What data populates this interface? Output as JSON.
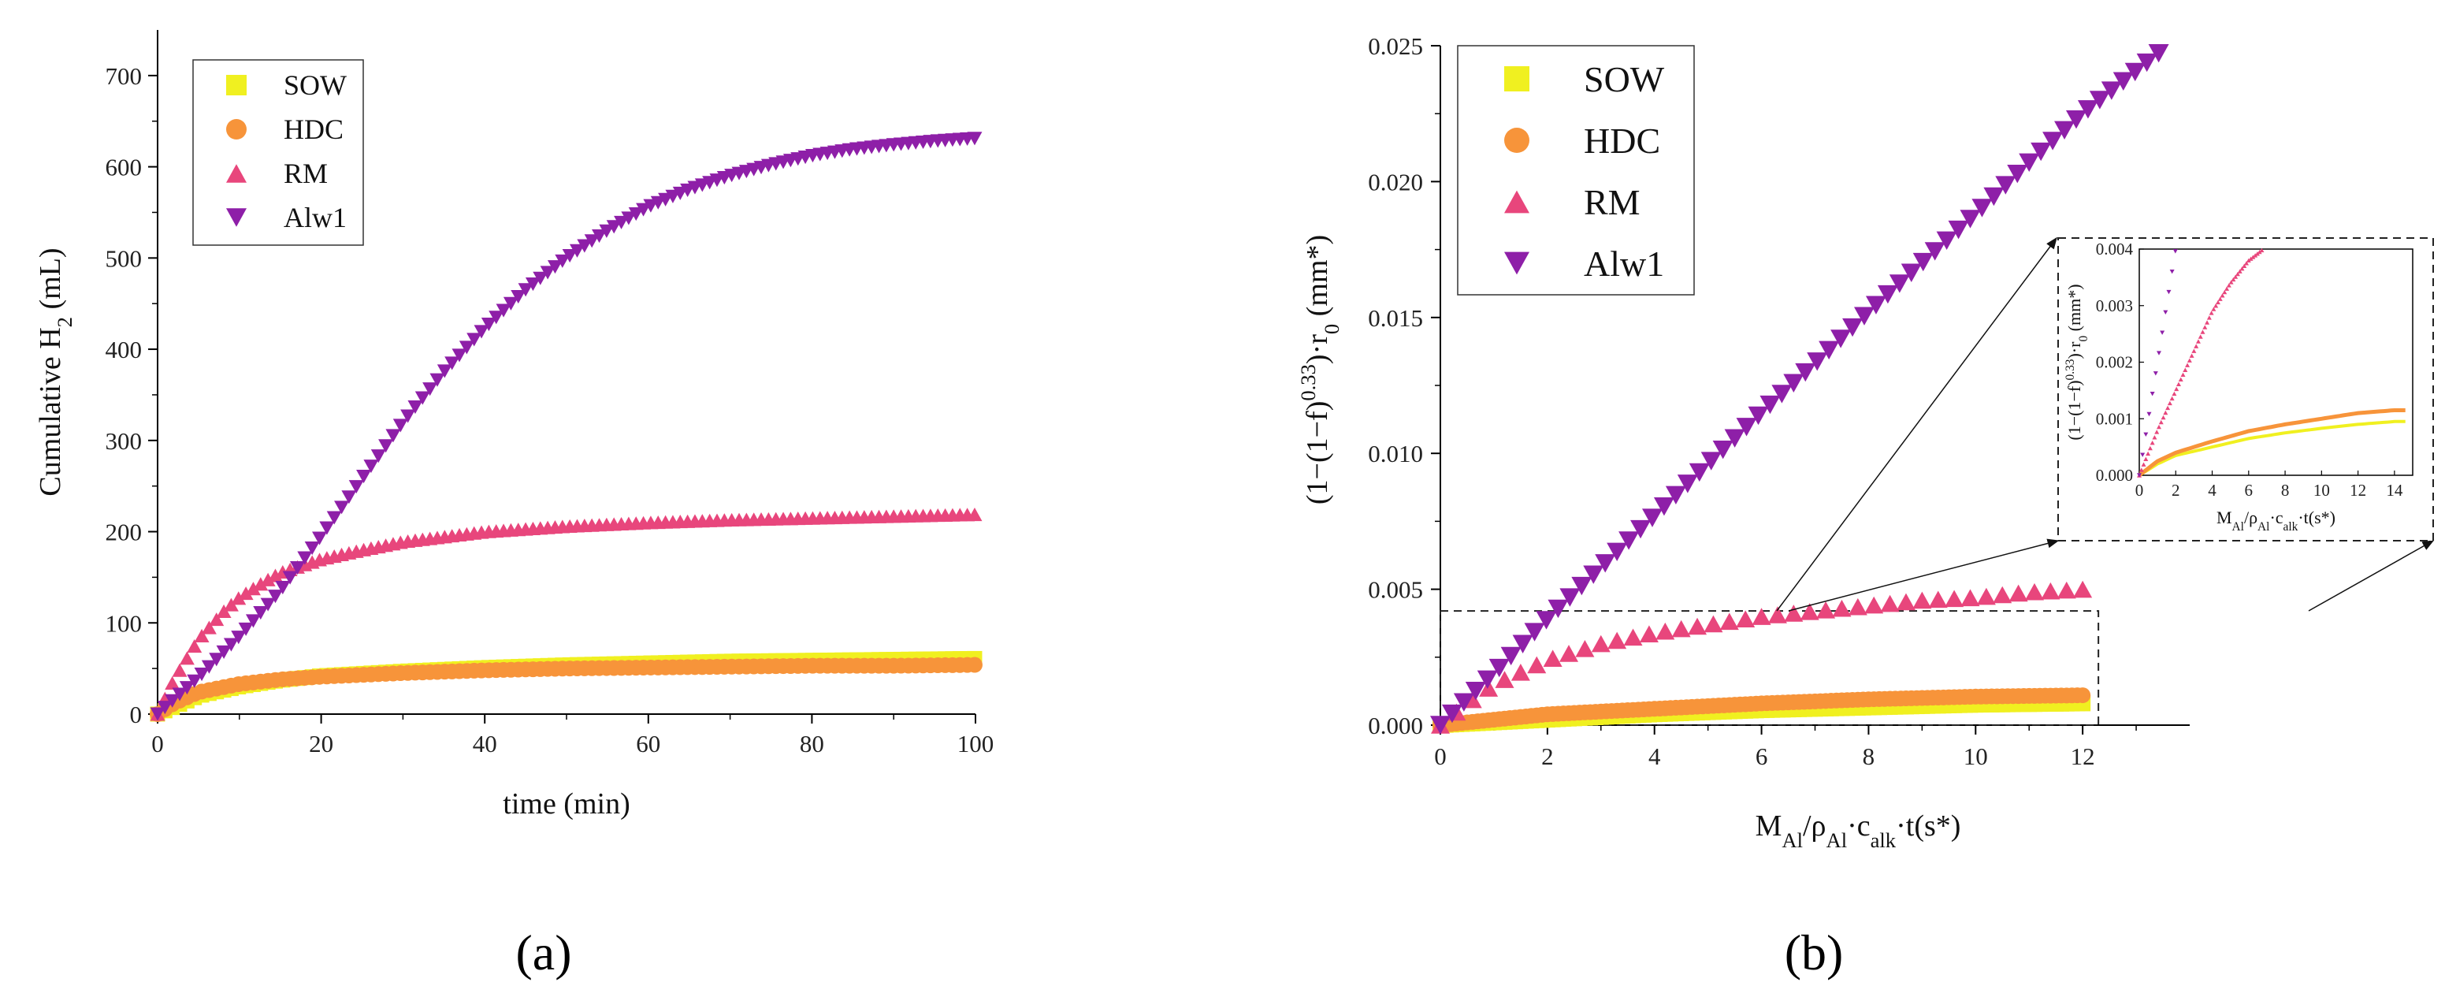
{
  "chart_data": [
    {
      "id": "a",
      "type": "scatter",
      "panel_label": "(a)",
      "title": "",
      "xlabel": "time (min)",
      "ylabel_main": "Cumulative H",
      "ylabel_sub": "2",
      "ylabel_tail": " (mL)",
      "xlim": [
        0,
        100
      ],
      "ylim": [
        0,
        750
      ],
      "xticks": [
        0,
        20,
        40,
        60,
        80,
        100
      ],
      "yticks": [
        0,
        100,
        200,
        300,
        400,
        500,
        600,
        700
      ],
      "legend_position": "top-left",
      "series": [
        {
          "name": "SOW",
          "color": "#f0f020",
          "marker": "square",
          "points": [
            [
              0,
              0
            ],
            [
              2,
              8
            ],
            [
              5,
              20
            ],
            [
              10,
              30
            ],
            [
              15,
              37
            ],
            [
              20,
              42
            ],
            [
              30,
              47
            ],
            [
              40,
              51
            ],
            [
              50,
              54
            ],
            [
              60,
              56
            ],
            [
              70,
              58
            ],
            [
              80,
              59
            ],
            [
              90,
              60
            ],
            [
              100,
              61
            ]
          ]
        },
        {
          "name": "HDC",
          "color": "#f7943a",
          "marker": "circle",
          "points": [
            [
              0,
              0
            ],
            [
              2,
              12
            ],
            [
              5,
              24
            ],
            [
              10,
              33
            ],
            [
              15,
              38
            ],
            [
              20,
              41
            ],
            [
              30,
              45
            ],
            [
              40,
              48
            ],
            [
              50,
              50
            ],
            [
              60,
              51
            ],
            [
              70,
              52
            ],
            [
              80,
              53
            ],
            [
              90,
              53
            ],
            [
              100,
              54
            ]
          ]
        },
        {
          "name": "RM",
          "color": "#e8467c",
          "marker": "triangle-up",
          "points": [
            [
              0,
              0
            ],
            [
              2,
              38
            ],
            [
              5,
              82
            ],
            [
              8,
              112
            ],
            [
              10,
              128
            ],
            [
              13,
              145
            ],
            [
              15,
              155
            ],
            [
              20,
              170
            ],
            [
              25,
              180
            ],
            [
              30,
              189
            ],
            [
              40,
              200
            ],
            [
              50,
              206
            ],
            [
              60,
              210
            ],
            [
              70,
              213
            ],
            [
              80,
              215
            ],
            [
              90,
              217
            ],
            [
              100,
              219
            ]
          ]
        },
        {
          "name": "Alw1",
          "color": "#8e1fa8",
          "marker": "triangle-down",
          "points": [
            [
              0,
              0
            ],
            [
              5,
              40
            ],
            [
              10,
              85
            ],
            [
              15,
              135
            ],
            [
              20,
              195
            ],
            [
              25,
              258
            ],
            [
              30,
              320
            ],
            [
              35,
              375
            ],
            [
              40,
              423
            ],
            [
              45,
              465
            ],
            [
              50,
              500
            ],
            [
              55,
              530
            ],
            [
              60,
              556
            ],
            [
              65,
              575
            ],
            [
              70,
              590
            ],
            [
              75,
              602
            ],
            [
              80,
              612
            ],
            [
              85,
              619
            ],
            [
              90,
              624
            ],
            [
              95,
              628
            ],
            [
              100,
              631
            ]
          ]
        }
      ]
    },
    {
      "id": "b",
      "type": "scatter",
      "panel_label": "(b)",
      "title": "",
      "xlabel_parts": [
        "M",
        "Al",
        "/ρ",
        "Al",
        "·c",
        "alk",
        "·t(s*)"
      ],
      "ylabel_parts": [
        "(1−(1−f)",
        "0.33",
        ")·r",
        "0",
        " (mm*)"
      ],
      "xlim": [
        0,
        14
      ],
      "ylim": [
        0,
        0.025
      ],
      "xticks": [
        0,
        2,
        4,
        6,
        8,
        10,
        12
      ],
      "ytick_labels": [
        "0.000",
        "0.005",
        "0.010",
        "0.015",
        "0.020",
        "0.025"
      ],
      "yticks": [
        0,
        0.005,
        0.01,
        0.015,
        0.02,
        0.025
      ],
      "legend_position": "top-left",
      "zoom_box": {
        "x": [
          0,
          12
        ],
        "y": [
          0,
          0.0042
        ]
      },
      "series": [
        {
          "name": "SOW",
          "color": "#f0f020",
          "marker": "square",
          "points": [
            [
              0,
              0
            ],
            [
              1,
              0.0001
            ],
            [
              2,
              0.0002
            ],
            [
              4,
              0.0004
            ],
            [
              6,
              0.00055
            ],
            [
              8,
              0.00065
            ],
            [
              10,
              0.00075
            ],
            [
              12,
              0.0008
            ]
          ]
        },
        {
          "name": "HDC",
          "color": "#f7943a",
          "marker": "circle",
          "points": [
            [
              0,
              0
            ],
            [
              1,
              0.0002
            ],
            [
              2,
              0.0004
            ],
            [
              4,
              0.0006
            ],
            [
              6,
              0.0008
            ],
            [
              8,
              0.00095
            ],
            [
              10,
              0.00105
            ],
            [
              12,
              0.0011
            ]
          ]
        },
        {
          "name": "RM",
          "color": "#e8467c",
          "marker": "triangle-up",
          "points": [
            [
              0,
              0
            ],
            [
              0.5,
              0.0008
            ],
            [
              1,
              0.0015
            ],
            [
              2,
              0.0024
            ],
            [
              3,
              0.003
            ],
            [
              4,
              0.0034
            ],
            [
              5,
              0.0037
            ],
            [
              6,
              0.004
            ],
            [
              7,
              0.0042
            ],
            [
              8,
              0.0044
            ],
            [
              9,
              0.0046
            ],
            [
              10,
              0.0047
            ],
            [
              11,
              0.0049
            ],
            [
              12,
              0.005
            ]
          ]
        },
        {
          "name": "Alw1",
          "color": "#8e1fa8",
          "marker": "triangle-down",
          "points": [
            [
              0,
              0
            ],
            [
              1,
              0.0019
            ],
            [
              2,
              0.0039
            ],
            [
              3,
              0.0058
            ],
            [
              4,
              0.0077
            ],
            [
              5,
              0.0096
            ],
            [
              6,
              0.0115
            ],
            [
              7,
              0.0133
            ],
            [
              8,
              0.0152
            ],
            [
              9,
              0.017
            ],
            [
              10,
              0.0188
            ],
            [
              11,
              0.0207
            ],
            [
              12,
              0.0225
            ],
            [
              13.6,
              0.025
            ]
          ]
        }
      ],
      "inset": {
        "xlabel_parts": [
          "M",
          "Al",
          "/ρ",
          "Al",
          "·c",
          "alk",
          "·t(s*)"
        ],
        "ylabel_parts": [
          "(1−(1−f)",
          "0.33",
          ")·r",
          "0",
          " (mm*)"
        ],
        "xlim": [
          0,
          15
        ],
        "ylim": [
          0,
          0.004
        ],
        "xticks": [
          0,
          2,
          4,
          6,
          8,
          10,
          12,
          14
        ],
        "yticks": [
          0,
          0.001,
          0.002,
          0.003,
          0.004
        ],
        "ytick_labels": [
          "0.000",
          "0.001",
          "0.002",
          "0.003",
          "0.004"
        ],
        "series": [
          {
            "name": "SOW",
            "color": "#f0f020",
            "points": [
              [
                0,
                0
              ],
              [
                1,
                0.0002
              ],
              [
                2,
                0.00035
              ],
              [
                4,
                0.0005
              ],
              [
                6,
                0.00065
              ],
              [
                8,
                0.00075
              ],
              [
                10,
                0.00083
              ],
              [
                12,
                0.0009
              ],
              [
                14,
                0.00095
              ]
            ]
          },
          {
            "name": "HDC",
            "color": "#f7943a",
            "points": [
              [
                0,
                0
              ],
              [
                1,
                0.00025
              ],
              [
                2,
                0.0004
              ],
              [
                4,
                0.0006
              ],
              [
                6,
                0.00078
              ],
              [
                8,
                0.0009
              ],
              [
                10,
                0.001
              ],
              [
                12,
                0.0011
              ],
              [
                14,
                0.00115
              ]
            ]
          },
          {
            "name": "RM",
            "color": "#e8467c",
            "points": [
              [
                0,
                0
              ],
              [
                0.5,
                0.0004
              ],
              [
                1,
                0.0008
              ],
              [
                2,
                0.0015
              ],
              [
                3,
                0.0022
              ],
              [
                4,
                0.0029
              ],
              [
                5,
                0.0034
              ],
              [
                6,
                0.0038
              ],
              [
                6.8,
                0.004
              ]
            ]
          },
          {
            "name": "Alw1",
            "color": "#8e1fa8",
            "points": [
              [
                0,
                0
              ],
              [
                0.5,
                0.001
              ],
              [
                1,
                0.002
              ],
              [
                1.5,
                0.003
              ],
              [
                2,
                0.004
              ]
            ]
          }
        ]
      }
    }
  ]
}
